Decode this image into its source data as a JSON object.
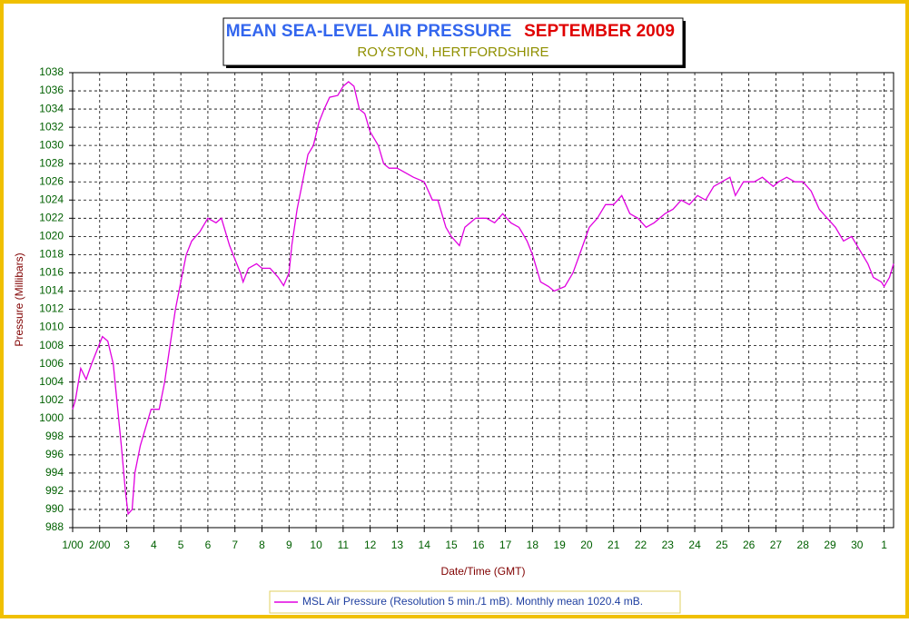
{
  "chart_data": {
    "type": "line",
    "title": "MEAN SEA-LEVEL AIR PRESSURE",
    "title_date": "SEPTEMBER 2009",
    "subtitle": "ROYSTON, HERTFORDSHIRE",
    "x_label": "Date/Time (GMT)",
    "y_label": "Pressure (Millibars)",
    "xlim": [
      0,
      30.35
    ],
    "ylim": [
      988,
      1038
    ],
    "yticks": [
      988,
      990,
      992,
      994,
      996,
      998,
      1000,
      1002,
      1004,
      1006,
      1008,
      1010,
      1012,
      1014,
      1016,
      1018,
      1020,
      1022,
      1024,
      1026,
      1028,
      1030,
      1032,
      1034,
      1036,
      1038
    ],
    "xticks": [
      {
        "value": 0,
        "label": "1/00"
      },
      {
        "value": 1,
        "label": "2/00"
      },
      {
        "value": 2,
        "label": "3"
      },
      {
        "value": 3,
        "label": "4"
      },
      {
        "value": 4,
        "label": "5"
      },
      {
        "value": 5,
        "label": "6"
      },
      {
        "value": 6,
        "label": "7"
      },
      {
        "value": 7,
        "label": "8"
      },
      {
        "value": 8,
        "label": "9"
      },
      {
        "value": 9,
        "label": "10"
      },
      {
        "value": 10,
        "label": "11"
      },
      {
        "value": 11,
        "label": "12"
      },
      {
        "value": 12,
        "label": "13"
      },
      {
        "value": 13,
        "label": "14"
      },
      {
        "value": 14,
        "label": "15"
      },
      {
        "value": 15,
        "label": "16"
      },
      {
        "value": 16,
        "label": "17"
      },
      {
        "value": 17,
        "label": "18"
      },
      {
        "value": 18,
        "label": "19"
      },
      {
        "value": 19,
        "label": "20"
      },
      {
        "value": 20,
        "label": "21"
      },
      {
        "value": 21,
        "label": "22"
      },
      {
        "value": 22,
        "label": "23"
      },
      {
        "value": 23,
        "label": "24"
      },
      {
        "value": 24,
        "label": "25"
      },
      {
        "value": 25,
        "label": "26"
      },
      {
        "value": 26,
        "label": "27"
      },
      {
        "value": 27,
        "label": "28"
      },
      {
        "value": 28,
        "label": "29"
      },
      {
        "value": 29,
        "label": "30"
      },
      {
        "value": 30,
        "label": "1"
      }
    ],
    "grid": true,
    "x": [
      0,
      0.1,
      0.3,
      0.5,
      0.7,
      0.9,
      1.1,
      1.3,
      1.5,
      1.6,
      1.8,
      1.95,
      2.05,
      2.2,
      2.3,
      2.5,
      2.7,
      2.9,
      3.2,
      3.4,
      3.6,
      3.8,
      4.0,
      4.2,
      4.4,
      4.7,
      5.0,
      5.3,
      5.5,
      5.8,
      6.0,
      6.2,
      6.3,
      6.5,
      6.8,
      7.0,
      7.3,
      7.6,
      7.8,
      8.0,
      8.1,
      8.3,
      8.5,
      8.7,
      8.9,
      9.1,
      9.3,
      9.5,
      9.8,
      10.0,
      10.2,
      10.4,
      10.6,
      10.8,
      11.0,
      11.3,
      11.5,
      11.7,
      12.0,
      12.3,
      12.6,
      13.0,
      13.3,
      13.5,
      13.8,
      14.0,
      14.3,
      14.5,
      14.9,
      15.3,
      15.6,
      15.9,
      16.2,
      16.5,
      16.8,
      17.0,
      17.3,
      17.6,
      17.8,
      18.2,
      18.5,
      18.8,
      19.1,
      19.4,
      19.7,
      20.0,
      20.3,
      20.6,
      20.9,
      21.2,
      21.5,
      21.9,
      22.2,
      22.5,
      22.8,
      23.1,
      23.4,
      23.7,
      24.0,
      24.3,
      24.5,
      24.8,
      25.2,
      25.5,
      25.9,
      26.1,
      26.4,
      26.7,
      27.0,
      27.3,
      27.6,
      27.9,
      28.2,
      28.5,
      28.8,
      29.1,
      29.4,
      29.6,
      29.9,
      30.0,
      30.2,
      30.35
    ],
    "series": [
      {
        "name": "MSL Air Pressure (Resolution 5 min./1 mB). Monthly mean 1020.4 mB.",
        "color": "#e000e0",
        "values": [
          1001,
          1002,
          1005.5,
          1004.3,
          1006,
          1007.5,
          1009,
          1008.5,
          1006,
          1003,
          997,
          992,
          989.5,
          990,
          994,
          997,
          999,
          1001,
          1001,
          1004,
          1008,
          1012,
          1015,
          1018,
          1019.5,
          1020.5,
          1022,
          1021.5,
          1022,
          1019,
          1017.5,
          1016,
          1015,
          1016.5,
          1017,
          1016.5,
          1016.5,
          1015.5,
          1014.6,
          1016,
          1019,
          1023,
          1026,
          1029,
          1030,
          1032.5,
          1034,
          1035.3,
          1035.5,
          1036.5,
          1037,
          1036.5,
          1034,
          1033.5,
          1031.5,
          1030,
          1028,
          1027.5,
          1027.5,
          1027,
          1026.5,
          1026,
          1024,
          1024,
          1021,
          1020,
          1019,
          1021,
          1022,
          1022,
          1021.5,
          1022.5,
          1021.5,
          1021,
          1019.5,
          1018,
          1015,
          1014.5,
          1014,
          1014.5,
          1016,
          1018.5,
          1021,
          1022,
          1023.5,
          1023.5,
          1024.5,
          1022.5,
          1022,
          1021,
          1021.5,
          1022.5,
          1023,
          1024,
          1023.5,
          1024.5,
          1024,
          1025.5,
          1026,
          1026.5,
          1024.5,
          1026,
          1026,
          1026.5,
          1025.5,
          1026,
          1026.5,
          1026,
          1026,
          1025,
          1023,
          1022,
          1021,
          1019.5,
          1020,
          1018.5,
          1017,
          1015.5,
          1015,
          1014.5,
          1015.5,
          1017
        ]
      }
    ]
  }
}
